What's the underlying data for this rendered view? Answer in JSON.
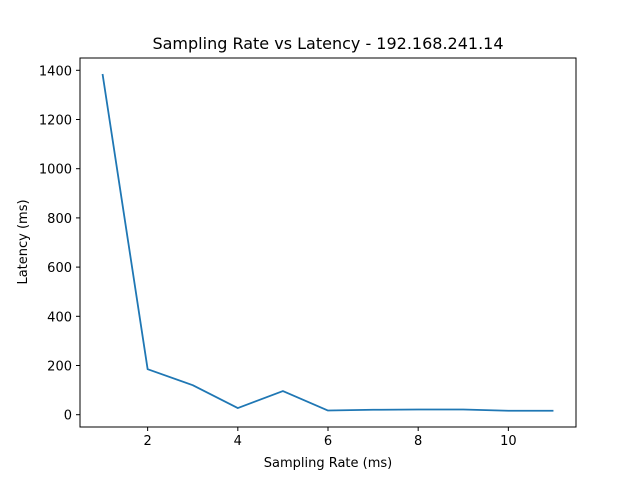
{
  "chart_data": {
    "type": "line",
    "title": "Sampling Rate vs Latency - 192.168.241.14",
    "xlabel": "Sampling Rate (ms)",
    "ylabel": "Latency (ms)",
    "xlim": [
      0.5,
      11.5
    ],
    "ylim": [
      -50,
      1450
    ],
    "xticks": [
      2,
      4,
      6,
      8,
      10
    ],
    "yticks": [
      0,
      200,
      400,
      600,
      800,
      1000,
      1200,
      1400
    ],
    "grid": false,
    "series": [
      {
        "color": "#1f77b4",
        "x": [
          1,
          2,
          3,
          4,
          5,
          6,
          7,
          8,
          9,
          10,
          11
        ],
        "y": [
          1385,
          185,
          120,
          27,
          96,
          17,
          20,
          21,
          21,
          16,
          16
        ]
      }
    ]
  }
}
